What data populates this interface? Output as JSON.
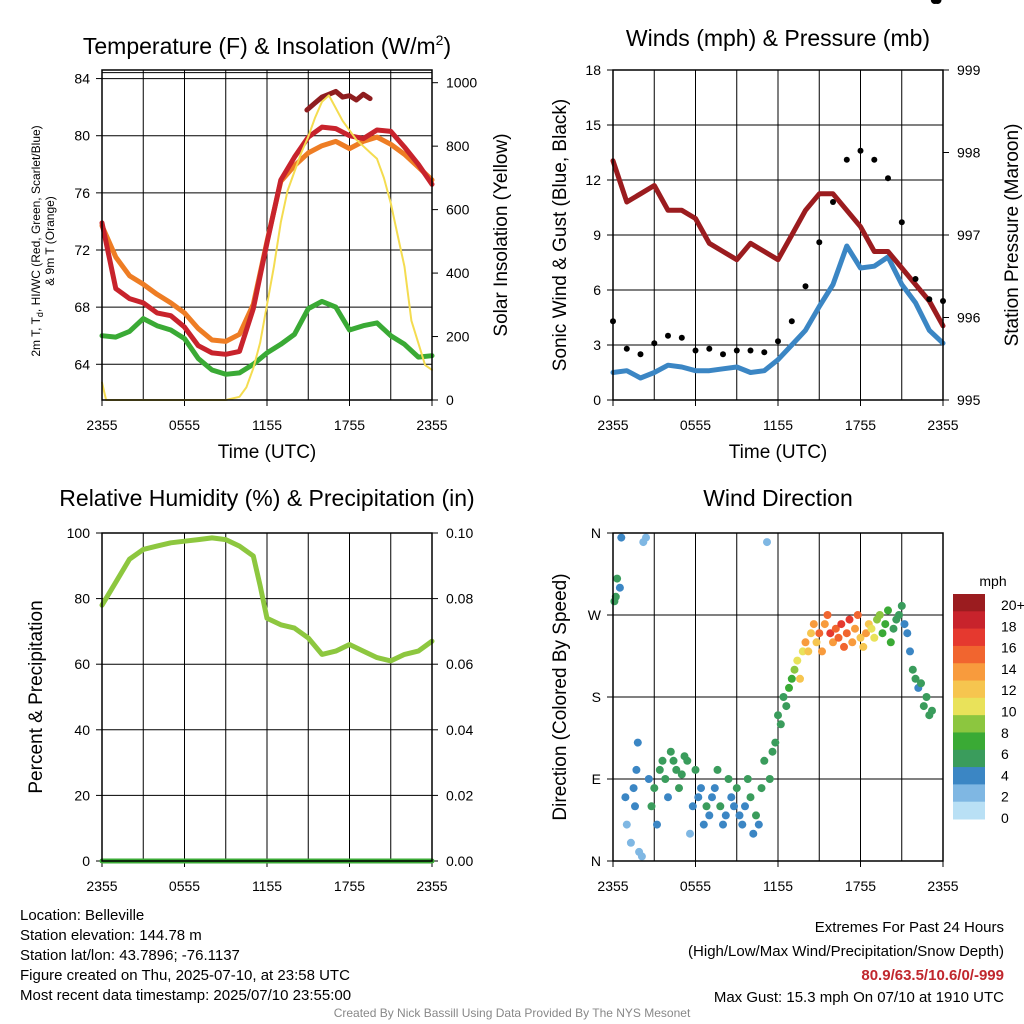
{
  "chart_data": [
    {
      "type": "line",
      "title": "Temperature (F) & Insolation (W/m²)",
      "title_main": "Temperature (F) & Insolation (W/m",
      "title_sup": "2",
      "title_end": ")",
      "xlabel": "Time (UTC)",
      "ylabel_left": "2m T, T_d, HI/WC (Red, Green, Scarlet/Blue) & 9m T (Orange)",
      "ylabel_left_line1": "2m T, T",
      "ylabel_left_sub": "d",
      "ylabel_left_line1_end": ", HI/WC (Red, Green, Scarlet/Blue)",
      "ylabel_left_line2": "& 9m T (Orange)",
      "ylabel_right": "Solar Insolation (Yellow)",
      "x_ticks": [
        "2355",
        "0555",
        "1155",
        "1755",
        "2355"
      ],
      "x_range": [
        0,
        24
      ],
      "y_left_ticks": [
        "64",
        "68",
        "72",
        "76",
        "80",
        "84"
      ],
      "y_left_range": [
        61.5,
        84.6
      ],
      "y_right_ticks": [
        "0",
        "200",
        "400",
        "600",
        "800",
        "1000"
      ],
      "y_right_range": [
        0,
        1040
      ],
      "hline": 84,
      "series": [
        {
          "color": "#ee7d24",
          "x": [
            0,
            1,
            2,
            3,
            4,
            5,
            6,
            7,
            8,
            9,
            10,
            11,
            12,
            13,
            14,
            15,
            16,
            17,
            18,
            19,
            20,
            21,
            22,
            23,
            24
          ],
          "y": [
            73.7,
            71.5,
            70.2,
            69.6,
            68.9,
            68.3,
            67.6,
            66.5,
            65.7,
            65.6,
            66.1,
            68.2,
            72.6,
            76.8,
            77.9,
            78.8,
            79.3,
            79.6,
            79.1,
            79.6,
            79.9,
            79.4,
            78.7,
            77.8,
            76.9
          ]
        },
        {
          "color": "#c8232c",
          "x": [
            0,
            1,
            2,
            3,
            4,
            5,
            6,
            7,
            8,
            9,
            10,
            11,
            12,
            13,
            14,
            15,
            16,
            17,
            18,
            19,
            20,
            21,
            22,
            23,
            24
          ],
          "y": [
            73.9,
            69.3,
            68.6,
            68.3,
            67.6,
            67.4,
            66.6,
            65.3,
            64.8,
            64.7,
            64.9,
            67.9,
            72.5,
            76.9,
            78.5,
            79.9,
            80.6,
            80.5,
            80.0,
            79.8,
            80.4,
            80.3,
            79.2,
            78.0,
            76.6
          ]
        },
        {
          "color": "#8f1d1f",
          "x": [
            14.9,
            15.5,
            16,
            16.5,
            17,
            17.5,
            18,
            18.5,
            19,
            19.5
          ],
          "y": [
            81.8,
            82.3,
            82.7,
            82.9,
            83.1,
            82.7,
            82.8,
            82.5,
            82.9,
            82.6
          ]
        },
        {
          "color": "#3aaa35",
          "x": [
            0,
            1,
            2,
            3,
            4,
            5,
            6,
            7,
            8,
            9,
            10,
            11,
            12,
            13,
            14,
            15,
            16,
            17,
            18,
            19,
            20,
            21,
            22,
            23,
            24
          ],
          "y": [
            66.0,
            65.9,
            66.3,
            67.2,
            66.7,
            66.4,
            65.8,
            64.4,
            63.6,
            63.3,
            63.4,
            64.0,
            64.8,
            65.4,
            66.1,
            67.9,
            68.4,
            68.0,
            66.4,
            66.7,
            66.9,
            66.0,
            65.4,
            64.5,
            64.6
          ]
        },
        {
          "color": "#f4dc50",
          "x": [
            0,
            0.3,
            1,
            2,
            3,
            4,
            5,
            6,
            7,
            8,
            9,
            10,
            10.5,
            11,
            11.5,
            12,
            12.5,
            13,
            13.5,
            14,
            14.5,
            15,
            15.5,
            16,
            16.5,
            17,
            17.5,
            18,
            18.5,
            19,
            19.5,
            20,
            20.5,
            21,
            21.5,
            22,
            22.5,
            23,
            23.5,
            24
          ],
          "y": [
            55,
            0,
            0,
            0,
            0,
            0,
            0,
            0,
            0,
            0,
            0,
            10,
            40,
            100,
            180,
            300,
            420,
            560,
            660,
            720,
            780,
            830,
            890,
            940,
            960,
            920,
            880,
            850,
            820,
            800,
            780,
            760,
            700,
            620,
            520,
            420,
            250,
            180,
            110,
            95
          ]
        }
      ]
    },
    {
      "type": "line",
      "title": "Winds (mph) & Pressure (mb)",
      "xlabel": "Time (UTC)",
      "ylabel_left": "Sonic Wind & Gust (Blue, Black)",
      "ylabel_right": "Station Pressure (Maroon)",
      "x_ticks": [
        "2355",
        "0555",
        "1155",
        "1755",
        "2355"
      ],
      "x_range": [
        0,
        24
      ],
      "y_left_ticks": [
        "0",
        "3",
        "6",
        "9",
        "12",
        "15",
        "18"
      ],
      "y_left_range": [
        0,
        18
      ],
      "y_right_ticks": [
        "995",
        "996",
        "997",
        "998",
        "999"
      ],
      "y_right_range": [
        995,
        999
      ],
      "series": [
        {
          "color": "#3b86c4",
          "x": [
            0,
            1,
            2,
            3,
            4,
            5,
            6,
            7,
            8,
            9,
            10,
            11,
            12,
            13,
            14,
            15,
            16,
            17,
            18,
            19,
            20,
            21,
            22,
            23,
            24
          ],
          "y": [
            1.5,
            1.6,
            1.2,
            1.5,
            1.9,
            1.8,
            1.6,
            1.6,
            1.7,
            1.8,
            1.5,
            1.6,
            2.2,
            3.0,
            3.8,
            5.1,
            6.3,
            8.4,
            7.2,
            7.3,
            7.8,
            6.3,
            5.3,
            3.8,
            3.1
          ]
        },
        {
          "color": "#9b1c1f",
          "x": [
            0,
            1,
            2,
            3,
            4,
            5,
            6,
            7,
            8,
            9,
            10,
            11,
            12,
            13,
            14,
            15,
            16,
            17,
            18,
            19,
            20,
            21,
            22,
            23,
            24
          ],
          "y": [
            997.9,
            997.4,
            997.5,
            997.6,
            997.3,
            997.3,
            997.2,
            996.9,
            996.8,
            996.7,
            996.9,
            996.8,
            996.7,
            997.0,
            997.3,
            997.5,
            997.5,
            997.3,
            997.1,
            996.8,
            996.8,
            996.6,
            996.4,
            996.2,
            995.9
          ]
        }
      ],
      "gust_series": {
        "color": "#000000",
        "x": [
          0,
          1,
          2,
          3,
          4,
          5,
          6,
          7,
          8,
          9,
          10,
          11,
          12,
          13,
          14,
          15,
          16,
          17,
          18,
          19,
          20,
          21,
          22,
          23,
          24
        ],
        "y": [
          4.3,
          2.8,
          2.5,
          3.1,
          3.5,
          3.4,
          2.7,
          2.8,
          2.5,
          2.7,
          2.7,
          2.6,
          3.2,
          4.3,
          6.2,
          8.6,
          10.8,
          13.1,
          13.6,
          13.1,
          12.1,
          9.7,
          6.6,
          5.5,
          5.4
        ]
      }
    },
    {
      "type": "line",
      "title": "Relative Humidity (%) & Precipitation (in)",
      "xlabel": "",
      "ylabel_left": "Percent & Precipitation",
      "x_ticks": [
        "2355",
        "0555",
        "1155",
        "1755",
        "2355"
      ],
      "x_range": [
        0,
        24
      ],
      "y_left_ticks": [
        "0",
        "20",
        "40",
        "60",
        "80",
        "100"
      ],
      "y_left_range": [
        0,
        100
      ],
      "y_right_ticks": [
        "0.00",
        "0.02",
        "0.04",
        "0.06",
        "0.08",
        "0.10"
      ],
      "y_right_range": [
        0,
        0.1
      ],
      "series": [
        {
          "color": "#8dc73f",
          "x": [
            0,
            1,
            2,
            3,
            4,
            5,
            6,
            7,
            8,
            9,
            10,
            11,
            11.5,
            12,
            13,
            14,
            15,
            16,
            17,
            18,
            19,
            20,
            21,
            22,
            23,
            24
          ],
          "y": [
            78,
            85,
            92,
            95,
            96,
            97,
            97.5,
            98,
            98.5,
            98,
            96,
            93,
            84,
            74,
            72,
            71,
            68,
            63,
            64,
            66,
            64,
            62,
            61,
            63,
            64,
            67
          ]
        },
        {
          "color": "#3aaa35",
          "x": [
            0,
            24
          ],
          "y": [
            0,
            0
          ]
        }
      ]
    },
    {
      "type": "scatter",
      "title": "Wind Direction",
      "xlabel": "",
      "ylabel_left": "Direction (Colored By Speed)",
      "x_ticks": [
        "2355",
        "0555",
        "1155",
        "1755",
        "2355"
      ],
      "x_range": [
        0,
        24
      ],
      "y_left_ticks": [
        "N",
        "E",
        "S",
        "W",
        "N"
      ],
      "y_left_range": [
        0,
        360
      ],
      "colorbar": {
        "title": "mph",
        "labels": [
          "20+",
          "18",
          "16",
          "14",
          "12",
          "10",
          "8",
          "6",
          "4",
          "2",
          "0"
        ],
        "colors": [
          "#9b1c1f",
          "#c8232c",
          "#e5392f",
          "#f1652f",
          "#f89b3d",
          "#f6c54f",
          "#e9e25a",
          "#8cc63f",
          "#3aaa35",
          "#3a9c5c",
          "#3b86c4",
          "#7fb7e3",
          "#b9e0f5"
        ]
      },
      "points_x": [
        0.1,
        0.2,
        0.3,
        0.5,
        0.6,
        0.9,
        1.0,
        1.3,
        1.5,
        1.6,
        1.7,
        1.8,
        1.9,
        2.1,
        2.2,
        2.4,
        2.6,
        2.8,
        3.0,
        3.2,
        3.4,
        3.6,
        3.8,
        4.0,
        4.2,
        4.4,
        4.6,
        4.8,
        5.0,
        5.2,
        5.4,
        5.6,
        5.8,
        6.0,
        6.2,
        6.4,
        6.6,
        6.8,
        7.0,
        7.2,
        7.4,
        7.6,
        7.8,
        8.0,
        8.2,
        8.4,
        8.6,
        8.8,
        9.0,
        9.2,
        9.4,
        9.6,
        9.8,
        10.0,
        10.2,
        10.4,
        10.6,
        10.8,
        11.0,
        11.2,
        11.4,
        11.6,
        11.8,
        12.0,
        12.2,
        12.4,
        12.6,
        12.8,
        13.0,
        13.2,
        13.4,
        13.6,
        13.8,
        14.0,
        14.2,
        14.4,
        14.6,
        14.8,
        15.0,
        15.2,
        15.4,
        15.6,
        15.8,
        16.0,
        16.2,
        16.4,
        16.6,
        16.8,
        17.0,
        17.2,
        17.4,
        17.6,
        17.8,
        18.0,
        18.2,
        18.4,
        18.6,
        18.8,
        19.0,
        19.2,
        19.4,
        19.6,
        19.8,
        20.0,
        20.2,
        20.4,
        20.6,
        20.8,
        21.0,
        21.2,
        21.4,
        21.6,
        21.8,
        22.0,
        22.2,
        22.4,
        22.6,
        22.8,
        23.0,
        23.2,
        23.4,
        23.6
      ],
      "points_y": [
        285,
        290,
        310,
        300,
        355,
        70,
        40,
        20,
        80,
        60,
        100,
        130,
        10,
        5,
        350,
        355,
        90,
        60,
        80,
        40,
        100,
        110,
        90,
        70,
        120,
        110,
        100,
        80,
        95,
        115,
        110,
        30,
        60,
        100,
        70,
        80,
        40,
        60,
        50,
        70,
        80,
        100,
        60,
        40,
        50,
        90,
        70,
        60,
        80,
        50,
        40,
        60,
        90,
        70,
        30,
        50,
        40,
        80,
        110,
        350,
        90,
        120,
        130,
        160,
        150,
        180,
        170,
        190,
        200,
        210,
        220,
        200,
        230,
        240,
        230,
        250,
        260,
        240,
        250,
        230,
        260,
        270,
        250,
        240,
        255,
        245,
        260,
        235,
        250,
        265,
        240,
        255,
        270,
        245,
        235,
        250,
        260,
        255,
        245,
        265,
        270,
        250,
        260,
        275,
        240,
        255,
        265,
        270,
        280,
        260,
        250,
        230,
        210,
        200,
        190,
        195,
        170,
        180,
        160,
        165
      ],
      "points_speed": [
        3,
        3,
        3,
        2,
        2,
        2,
        1,
        1,
        2,
        2,
        2,
        2,
        1,
        1,
        1,
        1,
        2,
        3,
        3,
        2,
        3,
        3,
        3,
        2,
        3,
        3,
        3,
        3,
        3,
        3,
        3,
        1,
        2,
        3,
        2,
        2,
        2,
        3,
        2,
        2,
        2,
        3,
        3,
        2,
        2,
        3,
        2,
        2,
        3,
        2,
        2,
        2,
        3,
        3,
        2,
        3,
        2,
        3,
        3,
        1,
        3,
        3,
        3,
        3,
        3,
        3,
        3,
        4,
        4,
        5,
        6,
        7,
        6,
        8,
        7,
        7,
        8,
        7,
        9,
        8,
        8,
        9,
        10,
        8,
        9,
        9,
        10,
        9,
        9,
        10,
        8,
        8,
        9,
        7,
        7,
        8,
        7,
        6,
        6,
        5,
        5,
        4,
        4,
        4,
        4,
        3,
        3,
        3,
        3,
        2,
        2,
        2,
        3,
        3,
        2,
        3,
        3,
        3,
        3,
        3
      ]
    }
  ],
  "info": {
    "location": "Location: Belleville",
    "elevation": "Station elevation: 144.78 m",
    "latlon": "Station lat/lon: 43.7896; -76.1137",
    "created": "Figure created on Thu, 2025-07-10, at 23:58 UTC",
    "recent": "Most recent data timestamp: 2025/07/10 23:55:00"
  },
  "extremes": {
    "title": "Extremes For Past 24 Hours",
    "subtitle": "(High/Low/Max Wind/Precipitation/Snow Depth)",
    "values": "80.9/63.5/10.6/0/-999",
    "gust": "Max Gust: 15.3 mph On 07/10 at 1910 UTC",
    "values_color": "#c0272d"
  },
  "credit": "Created By Nick Bassill Using Data Provided By The NYS Mesonet"
}
